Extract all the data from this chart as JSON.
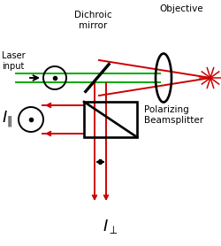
{
  "fig_width": 2.5,
  "fig_height": 2.78,
  "dpi": 100,
  "bg_color": "#ffffff",
  "green_color": "#00aa00",
  "red_color": "#cc0000",
  "black_color": "#000000",
  "dichroic_label": "Dichroic\nmirror",
  "objective_label": "Objective",
  "polarizing_label": "Polarizing\nBeamsplitter",
  "laser_label": "Laser\ninput"
}
